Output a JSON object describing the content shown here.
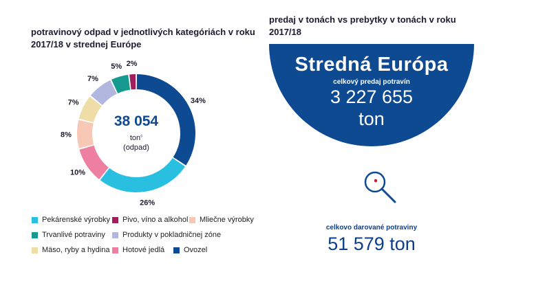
{
  "colors": {
    "navy": "#0d4a92",
    "cyan": "#29bfe0",
    "pink": "#ee7fa1",
    "peach": "#f8c8b6",
    "sand": "#efdda8",
    "lavender": "#b2b7e0",
    "teal": "#16998f",
    "magenta": "#a21d5c"
  },
  "left_title": "potravinový odpad v jednotlivých kategóriách v roku 2017/18 v strednej Európe",
  "right_title": "predaj v tonách vs prebytky v tonách v roku 2017/18",
  "chart_data": {
    "type": "pie",
    "title": "potravinový odpad v jednotlivých kategóriách v roku 2017/18 v strednej Európe",
    "center": {
      "value": "38 054",
      "unit": "ton",
      "footnote": "◊",
      "note": "(odpad)"
    },
    "slices": [
      {
        "name": "Ovozel",
        "value": 34,
        "label": "34%",
        "color": "#0d4a92"
      },
      {
        "name": "Pekárenské výrobky",
        "value": 26,
        "label": "26%",
        "color": "#29bfe0"
      },
      {
        "name": "Hotové jedlá",
        "value": 10,
        "label": "10%",
        "color": "#ee7fa1"
      },
      {
        "name": "Mliečne výrobky",
        "value": 8,
        "label": "8%",
        "color": "#f8c8b6"
      },
      {
        "name": "Mäso, ryby a hydina",
        "value": 7,
        "label": "7%",
        "color": "#efdda8"
      },
      {
        "name": "Produkty v pokladničnej zóne",
        "value": 7,
        "label": "7%",
        "color": "#b2b7e0"
      },
      {
        "name": "Trvanlivé potraviny",
        "value": 5,
        "label": "5%",
        "color": "#16998f"
      },
      {
        "name": "Pivo, víno a alkohol",
        "value": 2,
        "label": "2%",
        "color": "#a21d5c"
      }
    ],
    "legend": [
      {
        "label": "Pekárenské výrobky",
        "color": "#29bfe0"
      },
      {
        "label": "Pivo, víno a alkohol",
        "color": "#a21d5c"
      },
      {
        "label": "Mliečne výrobky",
        "color": "#f8c8b6"
      },
      {
        "label": "Trvanlivé potraviny",
        "color": "#16998f"
      },
      {
        "label": "Produkty v pokladničnej zóne",
        "color": "#b2b7e0"
      },
      {
        "label": "Mäso, ryby a hydina",
        "color": "#efdda8"
      },
      {
        "label": "Hotové jedlá",
        "color": "#ee7fa1"
      },
      {
        "label": "Ovozel",
        "color": "#0d4a92"
      }
    ]
  },
  "summary": {
    "region": "Stredná Európa",
    "sales_label": "celkový predaj potravín",
    "sales_value": "3 227 655",
    "sales_unit": "ton",
    "donated_label": "celkovo darované potraviny",
    "donated_value": "51 579 ton"
  }
}
